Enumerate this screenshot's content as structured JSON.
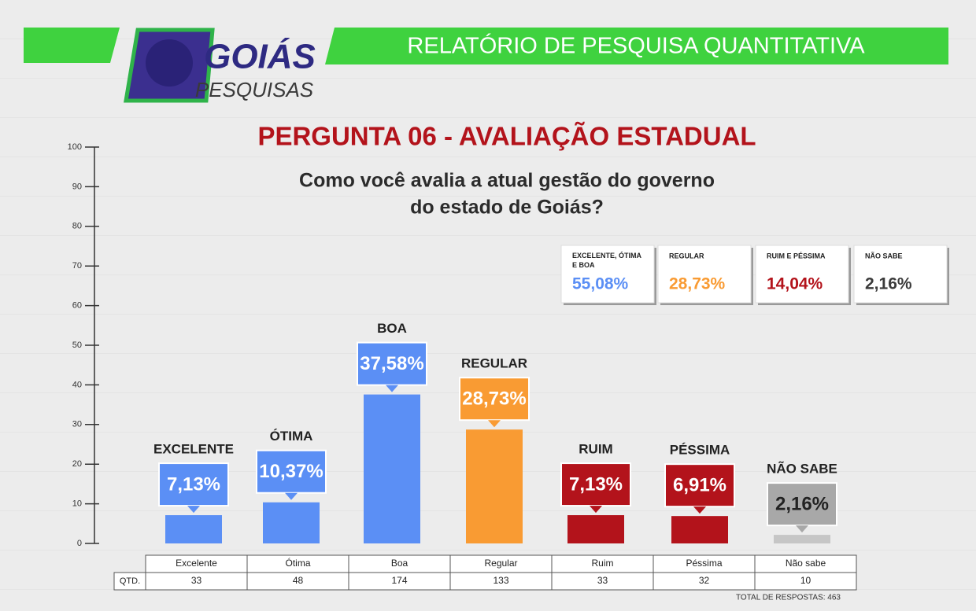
{
  "header": {
    "logo_top": "GOIÁS",
    "logo_bottom": "PESQUISAS",
    "title": "RELATÓRIO DE PESQUISA QUANTITATIVA"
  },
  "chart_data": {
    "type": "bar",
    "title": "PERGUNTA 06 - AVALIAÇÃO ESTADUAL",
    "subtitle": [
      "Como você avalia a atual gestão do governo",
      "do estado de Goiás?"
    ],
    "labels": [
      "EXCELENTE",
      "ÓTIMA",
      "BOA",
      "REGULAR",
      "RUIM",
      "PÉSSIMA",
      "NÃO SABE"
    ],
    "categories": [
      "Excelente",
      "Ótima",
      "Boa",
      "Regular",
      "Ruim",
      "Péssima",
      "Não sabe"
    ],
    "values": [
      7.13,
      10.37,
      37.58,
      28.73,
      7.13,
      6.91,
      2.16
    ],
    "value_labels": [
      "7,13%",
      "10,37%",
      "37,58%",
      "28,73%",
      "7,13%",
      "6,91%",
      "2,16%"
    ],
    "colors": [
      "#5b8ff5",
      "#5b8ff5",
      "#5b8ff5",
      "#f99b33",
      "#b3131b",
      "#b3131b",
      "#c6c6c6"
    ],
    "label_colors": [
      "#5b8ff5",
      "#5b8ff5",
      "#5b8ff5",
      "#f99b33",
      "#b3131b",
      "#b3131b",
      "#a8a8a8"
    ],
    "ylim": [
      0,
      100
    ],
    "yticks": [
      0,
      10,
      20,
      30,
      40,
      50,
      60,
      70,
      80,
      90,
      100
    ]
  },
  "summary": [
    {
      "label": "EXCELENTE, ÓTIMA E BOA",
      "value": "55,08%",
      "color": "#5b8ff5"
    },
    {
      "label": "REGULAR",
      "value": "28,73%",
      "color": "#f99b33"
    },
    {
      "label": "RUIM E PÉSSIMA",
      "value": "14,04%",
      "color": "#b3131b"
    },
    {
      "label": "NÃO SABE",
      "value": "2,16%",
      "color": "#3a3a3a"
    }
  ],
  "table": {
    "row_label": "QTD.",
    "counts": [
      33,
      48,
      174,
      133,
      33,
      32,
      10
    ]
  },
  "total": "TOTAL DE RESPOSTAS: 463"
}
